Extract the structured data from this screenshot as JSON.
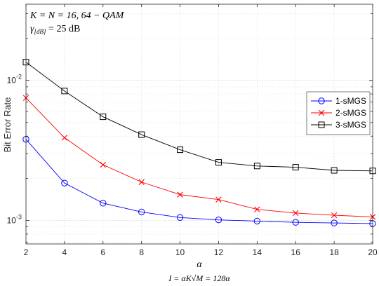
{
  "chart_data": {
    "type": "line",
    "annotation_line1": "K = N = 16, 64 − QAM",
    "annotation_line2_prefix": "γ",
    "annotation_line2_sub": "[dB]",
    "annotation_line2_rest": " = 25 dB",
    "xlabel": "α",
    "xlabel2": "I = αK√M = 128α",
    "ylabel": "Bit Error Rate",
    "yscale": "log",
    "xlim": [
      2,
      20
    ],
    "ylim": [
      0.00068,
      0.035
    ],
    "grid": true,
    "legend_position": "right",
    "x": [
      2,
      4,
      6,
      8,
      10,
      12,
      14,
      16,
      18,
      20
    ],
    "xticks": [
      "2",
      "4",
      "6",
      "8",
      "10",
      "12",
      "14",
      "16",
      "18",
      "20"
    ],
    "yticks": [
      {
        "base": "10",
        "exp": "-3",
        "value": 0.001
      },
      {
        "base": "10",
        "exp": "-2",
        "value": 0.01
      }
    ],
    "series": [
      {
        "name": "1-sMGS",
        "color": "#0000ff",
        "marker": "circle",
        "values": [
          0.0038,
          0.00185,
          0.00133,
          0.00115,
          0.00105,
          0.00101,
          0.00099,
          0.00097,
          0.00096,
          0.00095
        ]
      },
      {
        "name": "2-sMGS",
        "color": "#ff0000",
        "marker": "x",
        "values": [
          0.0075,
          0.0039,
          0.0025,
          0.00188,
          0.00153,
          0.00141,
          0.0012,
          0.00113,
          0.00109,
          0.00106
        ]
      },
      {
        "name": "3-sMGS",
        "color": "#000000",
        "marker": "square",
        "values": [
          0.0135,
          0.0084,
          0.0055,
          0.0041,
          0.0032,
          0.0026,
          0.00245,
          0.0024,
          0.00228,
          0.00226
        ]
      }
    ]
  }
}
